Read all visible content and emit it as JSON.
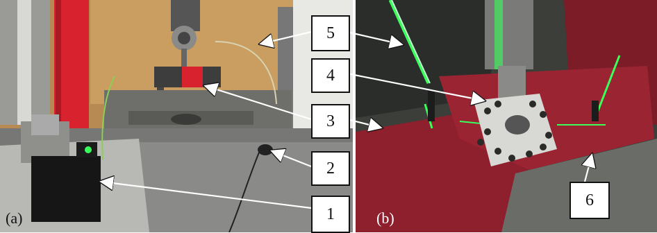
{
  "panels": [
    {
      "label": "(a)"
    },
    {
      "label": "(b)"
    }
  ],
  "callouts": [
    "5",
    "4",
    "3",
    "2",
    "1",
    "6"
  ],
  "colors": {
    "laser_green": "#39ff5a",
    "tape_red": "#8e1f2c",
    "machine_red": "#d8232f",
    "wood": "#c79a5c",
    "arrow": "#ffffff"
  }
}
